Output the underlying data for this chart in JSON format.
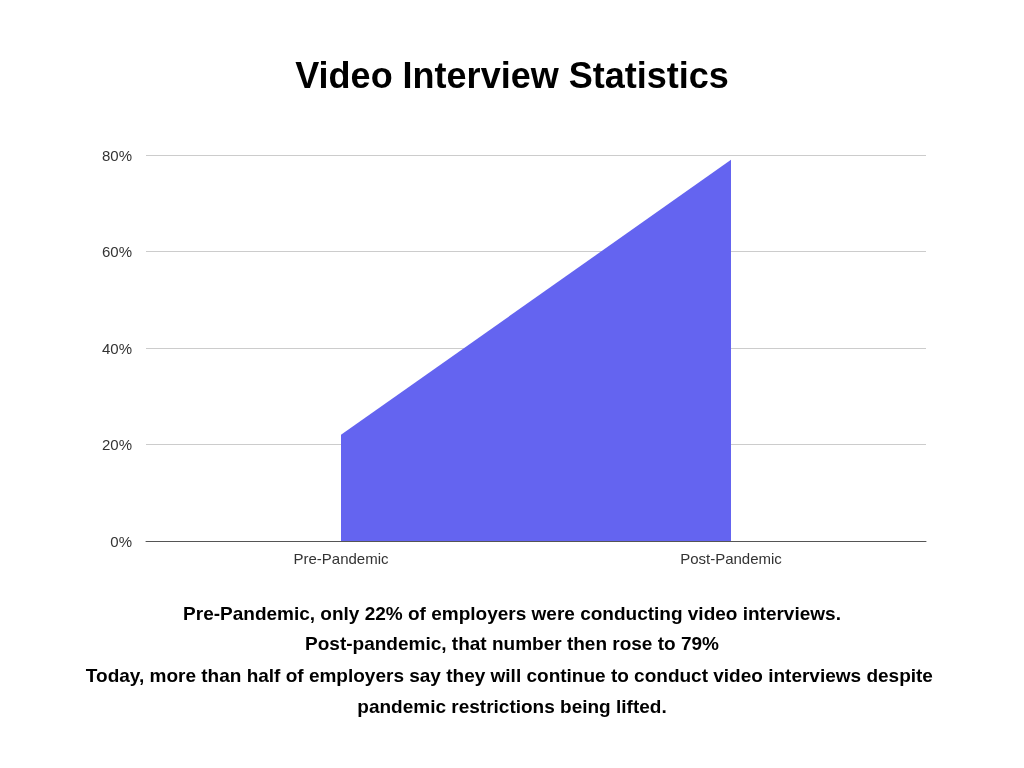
{
  "chart_data": {
    "type": "area",
    "title": "Video Interview Statistics",
    "categories": [
      "Pre-Pandemic",
      "Post-Pandemic"
    ],
    "series": [
      {
        "color": "#6464f0",
        "values": [
          22,
          79
        ]
      }
    ],
    "ylim": [
      0,
      80
    ],
    "yticks": [
      {
        "value": 0,
        "label": "0%"
      },
      {
        "value": 20,
        "label": "20%"
      },
      {
        "value": 40,
        "label": "40%"
      },
      {
        "value": 60,
        "label": "60%"
      },
      {
        "value": 80,
        "label": "80%"
      }
    ],
    "grid": "y",
    "marker": "none",
    "annotations": [
      "Pre-Pandemic, only 22% of employers were conducting video interviews.",
      "Post-pandemic, that number then rose to 79%",
      "Today, more than half of employers say they will continue to conduct video interviews despite pandemic restrictions being lifted."
    ]
  }
}
